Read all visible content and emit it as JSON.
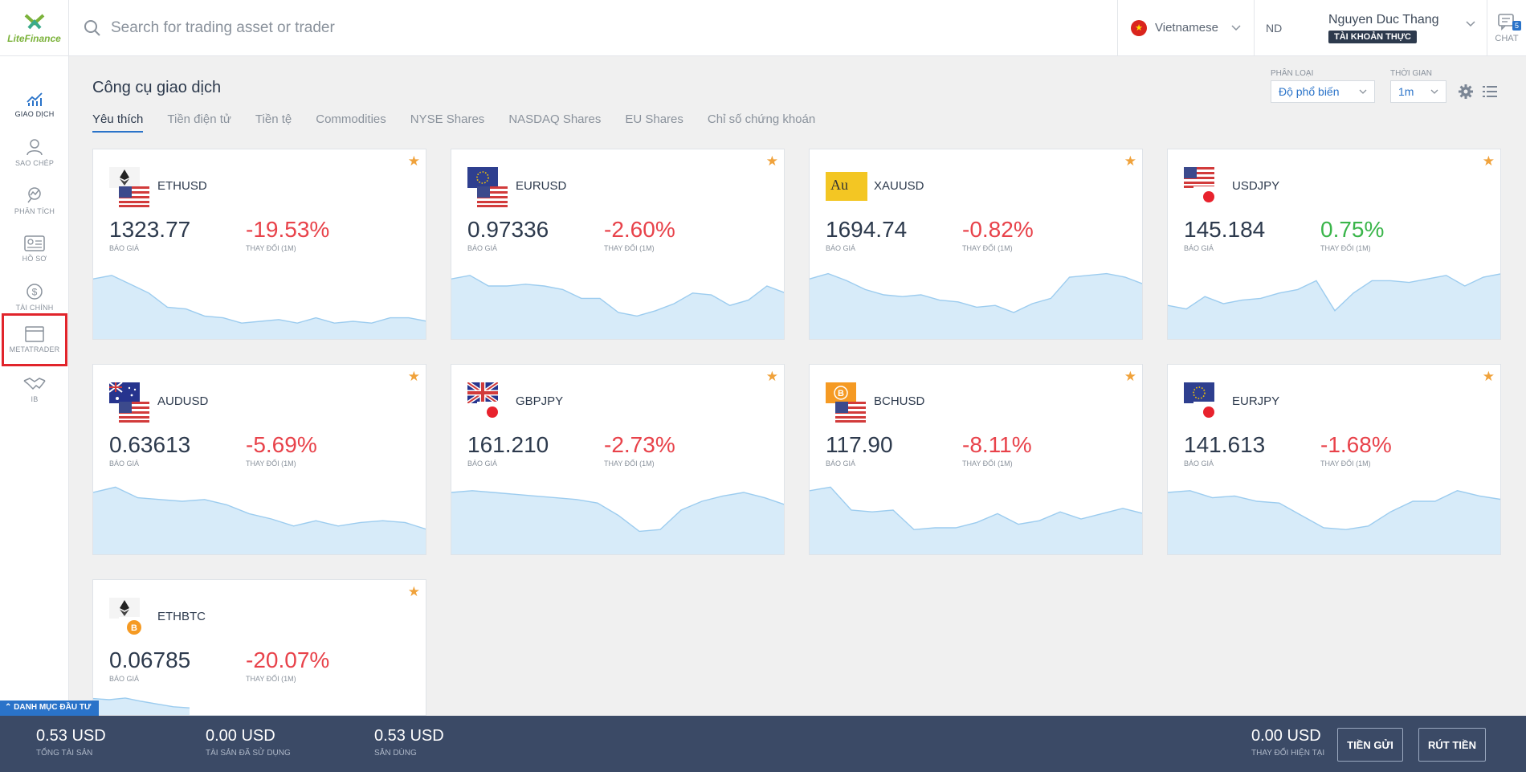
{
  "header": {
    "logo": "LiteFinance",
    "search_placeholder": "Search for trading asset or trader",
    "language": "Vietnamese",
    "user_initials": "ND",
    "user_name": "Nguyen Duc Thang",
    "account_type": "TÀI KHOẢN THỰC",
    "chat_label": "CHAT",
    "chat_count": "5"
  },
  "sidebar": {
    "items": [
      {
        "label": "GIAO DỊCH",
        "icon": "chart-icon"
      },
      {
        "label": "SAO CHÉP",
        "icon": "copy-trader-icon"
      },
      {
        "label": "PHÂN TÍCH",
        "icon": "analysis-icon"
      },
      {
        "label": "HỒ SƠ",
        "icon": "profile-card-icon"
      },
      {
        "label": "TÀI CHÍNH",
        "icon": "dollar-icon"
      },
      {
        "label": "METATRADER",
        "icon": "window-icon"
      },
      {
        "label": "IB",
        "icon": "handshake-icon"
      }
    ]
  },
  "main": {
    "title": "Công cụ giao dịch",
    "tabs": [
      "Yêu thích",
      "Tiền điện tử",
      "Tiền tệ",
      "Commodities",
      "NYSE Shares",
      "NASDAQ Shares",
      "EU Shares",
      "Chỉ số chứng khoán"
    ],
    "filter_category_label": "PHÂN LOẠI",
    "filter_category_value": "Độ phổ biến",
    "filter_time_label": "THỜI GIAN",
    "filter_time_value": "1m",
    "price_label": "BÁO GIÁ",
    "change_label": "THAY ĐỔI (1M)"
  },
  "assets": [
    {
      "symbol": "ETHUSD",
      "price": "1323.77",
      "change": "-19.53%",
      "trend": "negative",
      "spark": [
        68,
        72,
        62,
        52,
        36,
        34,
        26,
        24,
        18,
        20,
        22,
        18,
        24,
        18,
        20,
        18,
        24,
        24,
        20
      ]
    },
    {
      "symbol": "EURUSD",
      "price": "0.97336",
      "change": "-2.60%",
      "trend": "negative",
      "spark": [
        68,
        72,
        60,
        60,
        62,
        60,
        56,
        46,
        46,
        30,
        26,
        32,
        40,
        52,
        50,
        38,
        44,
        60,
        52
      ]
    },
    {
      "symbol": "XAUUSD",
      "price": "1694.74",
      "change": "-0.82%",
      "trend": "negative",
      "spark": [
        68,
        74,
        66,
        56,
        50,
        48,
        50,
        44,
        42,
        36,
        38,
        30,
        40,
        46,
        70,
        72,
        74,
        70,
        62
      ]
    },
    {
      "symbol": "USDJPY",
      "price": "145.184",
      "change": "0.75%",
      "trend": "positive",
      "spark": [
        38,
        34,
        48,
        40,
        44,
        46,
        52,
        56,
        66,
        32,
        52,
        66,
        66,
        64,
        68,
        72,
        60,
        70,
        74
      ]
    },
    {
      "symbol": "AUDUSD",
      "price": "0.63613",
      "change": "-5.69%",
      "trend": "negative",
      "spark": [
        70,
        76,
        64,
        62,
        60,
        62,
        56,
        46,
        40,
        32,
        38,
        32,
        36,
        38,
        36,
        28
      ]
    },
    {
      "symbol": "GBPJPY",
      "price": "161.210",
      "change": "-2.73%",
      "trend": "negative",
      "spark": [
        70,
        72,
        70,
        68,
        66,
        64,
        62,
        58,
        44,
        26,
        28,
        50,
        60,
        66,
        70,
        64,
        56
      ]
    },
    {
      "symbol": "BCHUSD",
      "price": "117.90",
      "change": "-8.11%",
      "trend": "negative",
      "spark": [
        72,
        76,
        50,
        48,
        50,
        28,
        30,
        30,
        36,
        46,
        34,
        38,
        48,
        40,
        46,
        52,
        46
      ]
    },
    {
      "symbol": "EURJPY",
      "price": "141.613",
      "change": "-1.68%",
      "trend": "negative",
      "spark": [
        70,
        72,
        64,
        66,
        60,
        58,
        44,
        30,
        28,
        32,
        48,
        60,
        60,
        72,
        66,
        62
      ]
    },
    {
      "symbol": "ETHBTC",
      "price": "0.06785",
      "change": "-20.07%",
      "trend": "negative",
      "spark": [
        60,
        56,
        62,
        50,
        40,
        30,
        26
      ]
    }
  ],
  "portfolio_tab": "DANH MỤC ĐẦU TƯ",
  "footer": {
    "total_assets_value": "0.53 USD",
    "total_assets_label": "TỔNG TÀI SẢN",
    "used_assets_value": "0.00 USD",
    "used_assets_label": "TÀI SẢN ĐÃ SỬ DỤNG",
    "available_value": "0.53 USD",
    "available_label": "SẴN DÙNG",
    "current_change_value": "0.00 USD",
    "current_change_label": "THAY ĐỔI HIỆN TẠI",
    "deposit_button": "TIỀN GỬI",
    "withdraw_button": "RÚT TIỀN"
  },
  "colors": {
    "accent": "#2a73c9",
    "negative": "#e8424a",
    "positive": "#3ab54a",
    "star": "#f0a23b",
    "footer_bg": "#3b4a66",
    "highlight": "#e1242b"
  }
}
